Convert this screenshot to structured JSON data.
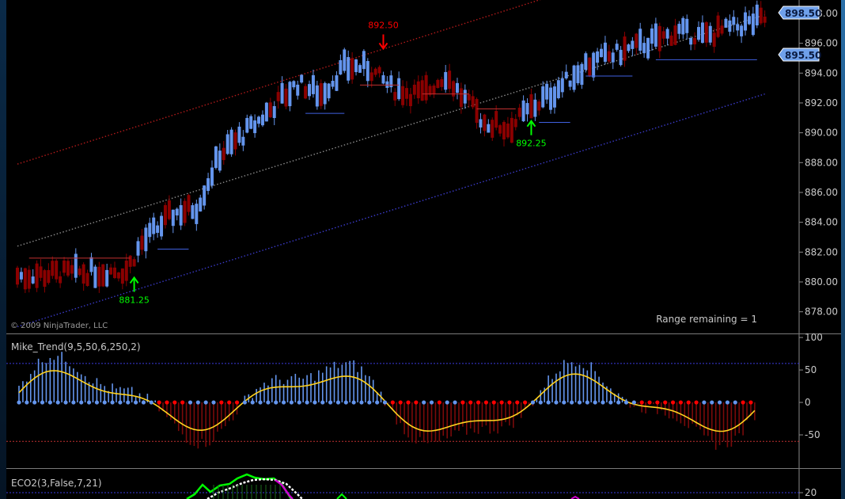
{
  "copyright": "© 2009 NinjaTrader, LLC",
  "range_text": "Range remaining = 1",
  "price_badges": {
    "last": "898.50",
    "mid": "895.50"
  },
  "colors": {
    "up": "#6495ED",
    "down": "#8B0000",
    "yellow": "#FFD21F",
    "green": "#00FF00",
    "red": "#FF0000",
    "magenta": "#D000D0"
  },
  "chart_data": [
    {
      "type": "candlestick",
      "title": "",
      "y_ticks": [
        "898.00",
        "896.00",
        "894.00",
        "892.00",
        "890.00",
        "888.00",
        "886.00",
        "884.00",
        "882.00",
        "880.00",
        "878.00"
      ],
      "ylim": [
        876.6,
        898.9
      ],
      "annotations": [
        {
          "label": "881.25",
          "type": "arrow-up",
          "price": 880.4,
          "bar": 30
        },
        {
          "label": "892.50",
          "type": "arrow-down",
          "price": 895.0,
          "bar": 94
        },
        {
          "label": "892.25",
          "type": "arrow-up",
          "price": 890.9,
          "bar": 132
        }
      ],
      "channel": {
        "upper": {
          "bar_start": 0,
          "price_start": 887.9,
          "bar_end": 145,
          "price_end": 899.8
        },
        "middle": {
          "bar_start": 0,
          "price_start": 882.4,
          "bar_end": 192,
          "price_end": 897.9
        },
        "lower": {
          "bar_start": 0,
          "price_start": 877.0,
          "bar_end": 192,
          "price_end": 892.6
        }
      }
    },
    {
      "type": "bar",
      "title": "Mike_Trend(9,5,50,6,250,2)",
      "y_ticks": [
        "100",
        "50",
        "0",
        "-50"
      ],
      "ylim": [
        -100,
        105
      ],
      "levels": [
        60,
        -60
      ]
    },
    {
      "type": "line",
      "title": "ECO2(3,False,7,21)",
      "y_ticks": [
        "20"
      ]
    }
  ]
}
